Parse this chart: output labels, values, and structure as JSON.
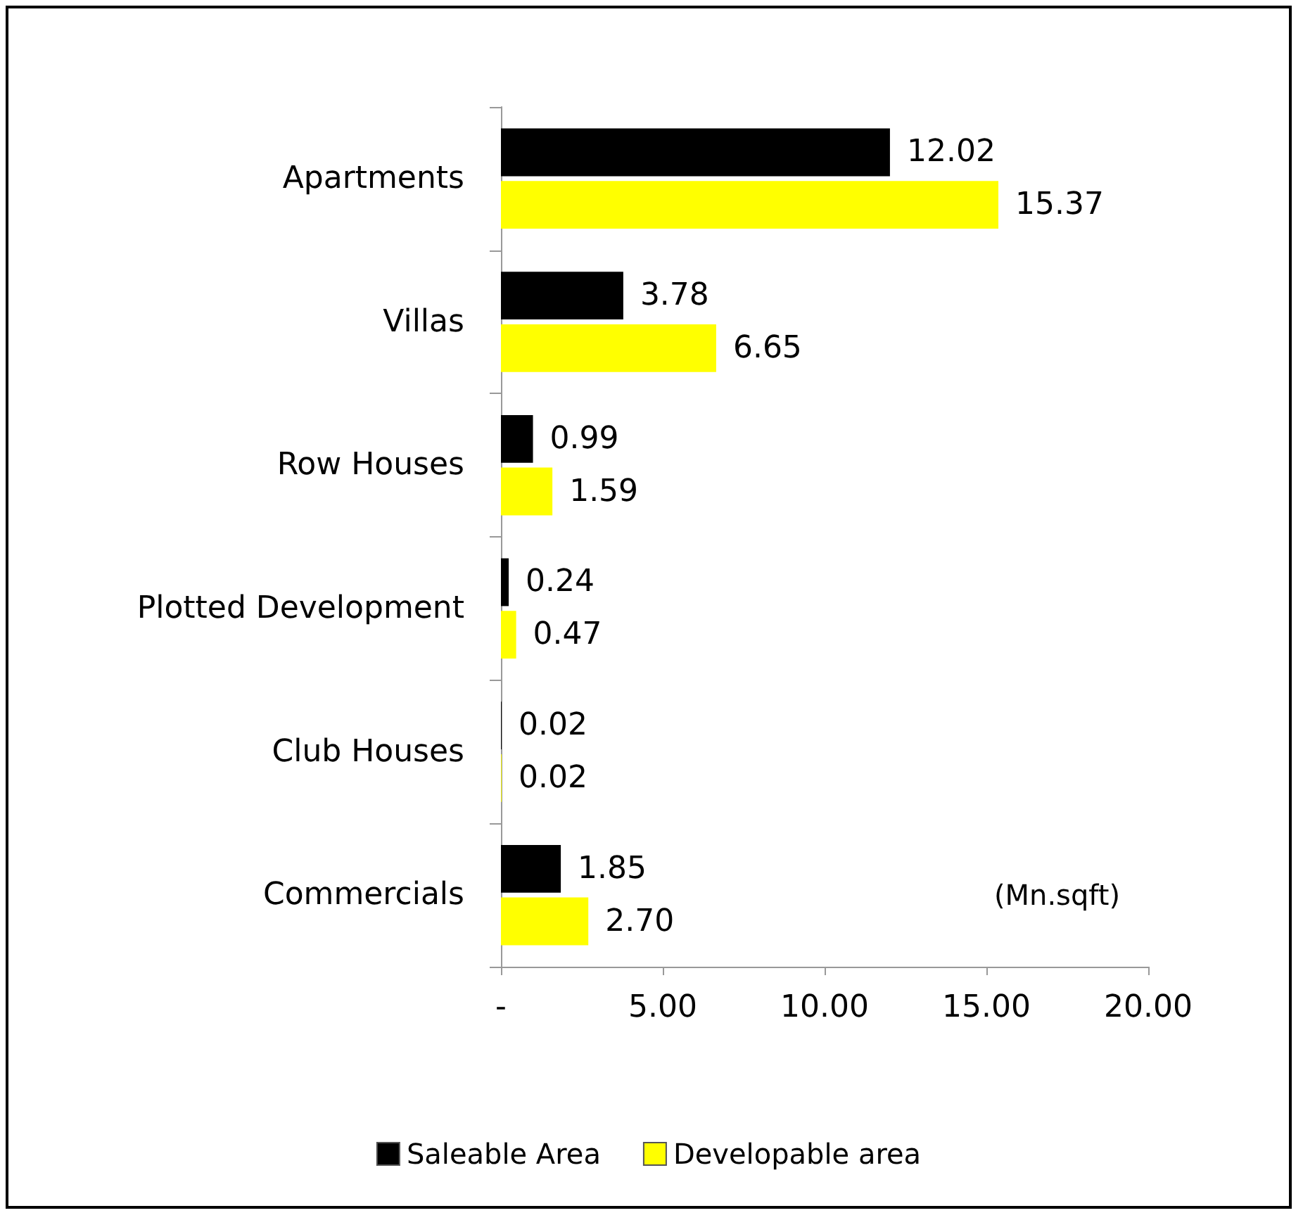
{
  "chart_data": {
    "type": "bar",
    "orientation": "horizontal",
    "categories": [
      "Apartments",
      "Villas",
      "Row Houses",
      "Plotted Development",
      "Club Houses",
      "Commercials"
    ],
    "series": [
      {
        "name": "Saleable Area",
        "color": "#000000",
        "values": [
          12.02,
          3.78,
          0.99,
          0.24,
          0.02,
          1.85
        ],
        "value_labels": [
          "12.02",
          "3.78",
          "0.99",
          "0.24",
          "0.02",
          "1.85"
        ]
      },
      {
        "name": "Developable area",
        "color": "#ffff00",
        "values": [
          15.37,
          6.65,
          1.59,
          0.47,
          0.02,
          2.7
        ],
        "value_labels": [
          "15.37",
          "6.65",
          "1.59",
          "0.47",
          "0.02",
          "2.70"
        ]
      }
    ],
    "xlim": [
      0,
      20
    ],
    "xticks": [
      {
        "value": 0,
        "label": "-"
      },
      {
        "value": 5,
        "label": "5.00"
      },
      {
        "value": 10,
        "label": "10.00"
      },
      {
        "value": 15,
        "label": "15.00"
      },
      {
        "value": 20,
        "label": "20.00"
      }
    ],
    "annotations": [
      "(Mn.sqft)"
    ],
    "grid": false,
    "legend": "bottom"
  }
}
